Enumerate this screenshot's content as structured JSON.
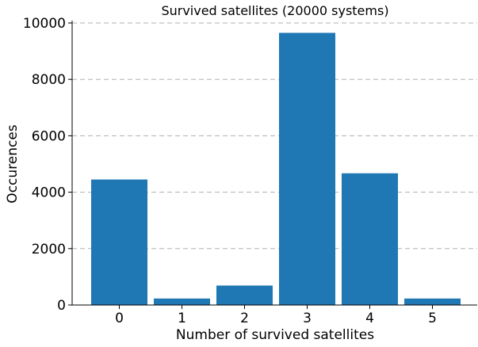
{
  "chart_data": {
    "type": "bar",
    "title": "Survived satellites (20000 systems)",
    "xlabel": "Number of survived satellites",
    "ylabel": "Occurences",
    "categories": [
      "0",
      "1",
      "2",
      "3",
      "4",
      "5"
    ],
    "values": [
      4450,
      230,
      690,
      9650,
      4670,
      230
    ],
    "ylim": [
      0,
      10000
    ],
    "yticks": [
      0,
      2000,
      4000,
      6000,
      8000,
      10000
    ],
    "grid": "y-dashed",
    "bar_color": "#1f77b4",
    "grid_color": "#b0b0b0"
  }
}
